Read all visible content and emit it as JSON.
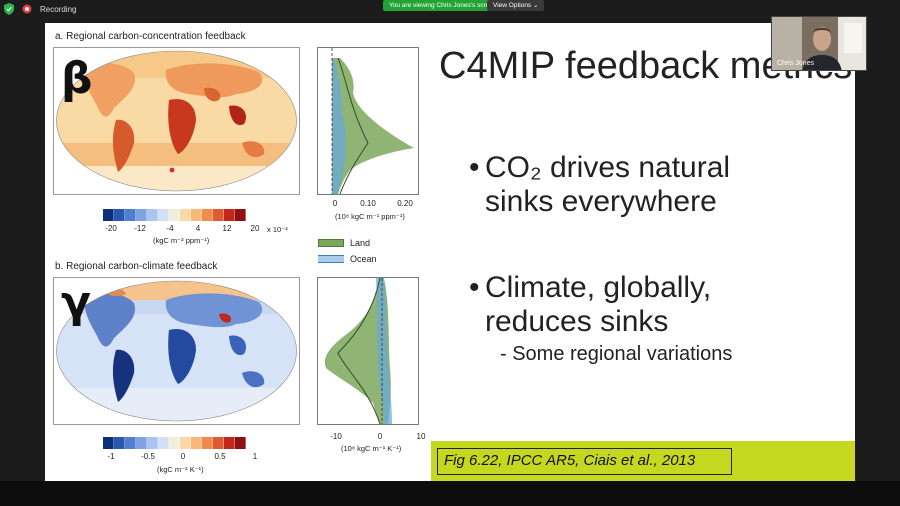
{
  "app": {
    "recording_label": "Recording",
    "viewing_banner": "You are viewing Chris Jones's screen",
    "view_options_label": "View Options"
  },
  "participant": {
    "name": "Chris Jones"
  },
  "figure": {
    "panel_a": {
      "title": "a.  Regional carbon-concentration feedback",
      "symbol": "β",
      "colorbar_ticks": [
        "-20",
        "-12",
        "-4",
        "4",
        "12",
        "20"
      ],
      "colorbar_multiplier": "x 10⁻³",
      "colorbar_units": "(kgC m⁻² ppm⁻¹)",
      "profile_ticks": [
        "0",
        "0.10",
        "0.20"
      ],
      "profile_units": "(10⁸ kgC m⁻¹ ppm⁻¹)"
    },
    "panel_b": {
      "title": "b.  Regional carbon-climate feedback",
      "symbol": "γ",
      "colorbar_ticks": [
        "-1",
        "-0.5",
        "0",
        "0.5",
        "1"
      ],
      "colorbar_units": "(kgC m⁻² K⁻¹)",
      "profile_ticks": [
        "-10",
        "0",
        "10"
      ],
      "profile_units": "(10⁸ kgC m⁻¹ K⁻¹)"
    },
    "legend": [
      {
        "label": "Land",
        "color": "#7da75c"
      },
      {
        "label": "Ocean",
        "color": "#6aa9d8"
      }
    ]
  },
  "slide": {
    "title": "C4MIP feedback metrics",
    "bullets": [
      {
        "line1": "CO₂  drives natural",
        "line2": "sinks everywhere"
      },
      {
        "line1": "Climate, globally,",
        "line2": "reduces sinks"
      }
    ],
    "sub_bullet": "- Some regional variations",
    "citation": "Fig 6.22, IPCC AR5, Ciais et al., 2013"
  },
  "colors": {
    "accent_band": "#c5d81f",
    "sharing_green": "#24a335",
    "diverging_palette": [
      "#0b2f7a",
      "#2a57b0",
      "#4f7fd0",
      "#7fa3e2",
      "#aac4ee",
      "#d2e0f6",
      "#f1eedb",
      "#fbd9a6",
      "#f8b877",
      "#f08a4d",
      "#df5a30",
      "#c1271d",
      "#8e0f14"
    ]
  }
}
